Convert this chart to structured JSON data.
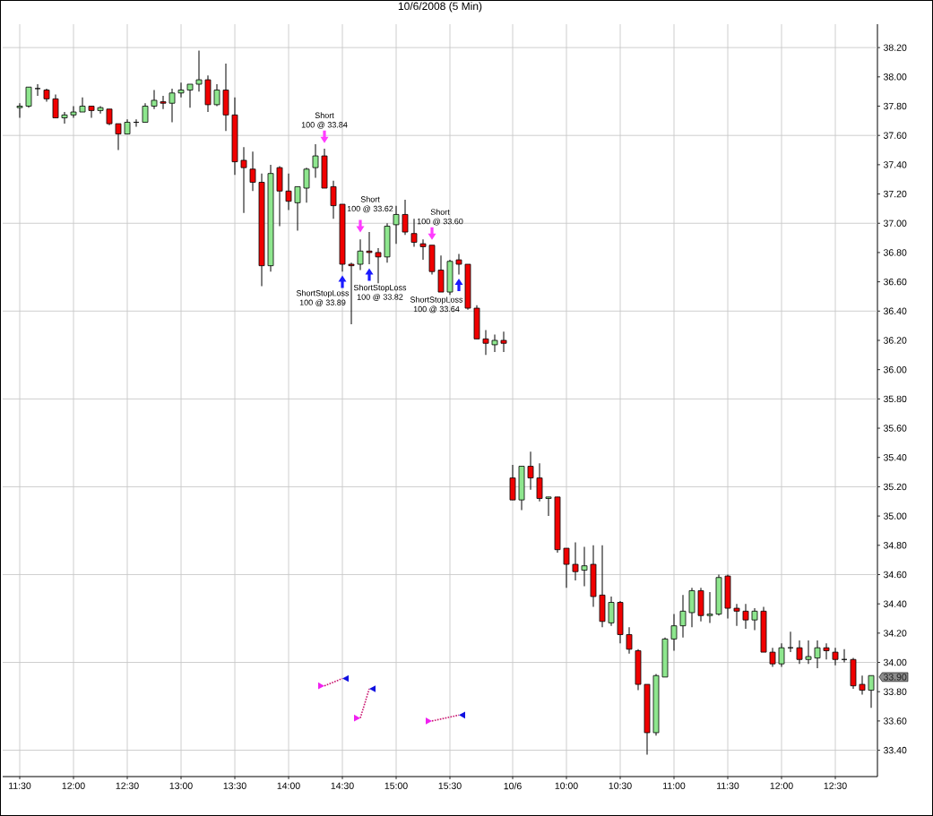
{
  "chart_data": {
    "type": "candlestick",
    "title": "10/6/2008 (5 Min)",
    "categories": [
      "11:30",
      null,
      null,
      null,
      null,
      null,
      "12:00",
      null,
      null,
      null,
      null,
      null,
      "12:30",
      null,
      null,
      null,
      null,
      null,
      "13:00",
      null,
      null,
      null,
      null,
      null,
      "13:30",
      null,
      null,
      null,
      null,
      null,
      "14:00",
      null,
      null,
      null,
      null,
      null,
      "14:30",
      null,
      null,
      null,
      null,
      null,
      "15:00",
      null,
      null,
      null,
      null,
      null,
      "15:30",
      null,
      null,
      null,
      null,
      null,
      null,
      "10/6",
      null,
      null,
      null,
      null,
      null,
      "10:00",
      null,
      null,
      null,
      null,
      null,
      "10:30",
      null,
      null,
      null,
      null,
      null,
      "11:00",
      null,
      null,
      null,
      null,
      null,
      "11:30",
      null,
      null,
      null,
      null,
      null,
      "12:00",
      null,
      null,
      null,
      null,
      null,
      "12:30",
      null,
      null,
      null,
      null
    ],
    "ohlc": [
      [
        37.79,
        37.82,
        37.72,
        37.8
      ],
      [
        37.8,
        37.93,
        37.79,
        37.93
      ],
      [
        37.92,
        37.95,
        37.87,
        37.92
      ],
      [
        37.91,
        37.92,
        37.83,
        37.85
      ],
      [
        37.85,
        37.88,
        37.72,
        37.72
      ],
      [
        37.72,
        37.76,
        37.68,
        37.74
      ],
      [
        37.74,
        37.8,
        37.72,
        37.76
      ],
      [
        37.76,
        37.86,
        37.76,
        37.8
      ],
      [
        37.8,
        37.8,
        37.72,
        37.77
      ],
      [
        37.77,
        37.8,
        37.75,
        37.79
      ],
      [
        37.78,
        37.78,
        37.67,
        37.68
      ],
      [
        37.68,
        37.68,
        37.5,
        37.61
      ],
      [
        37.61,
        37.71,
        37.61,
        37.69
      ],
      [
        37.69,
        37.71,
        37.66,
        37.69
      ],
      [
        37.69,
        37.82,
        37.69,
        37.8
      ],
      [
        37.8,
        37.91,
        37.78,
        37.84
      ],
      [
        37.83,
        37.87,
        37.78,
        37.82
      ],
      [
        37.82,
        37.92,
        37.69,
        37.89
      ],
      [
        37.89,
        37.96,
        37.86,
        37.91
      ],
      [
        37.91,
        37.95,
        37.79,
        37.95
      ],
      [
        37.95,
        38.18,
        37.9,
        37.98
      ],
      [
        37.98,
        38.01,
        37.76,
        37.81
      ],
      [
        37.81,
        37.95,
        37.8,
        37.91
      ],
      [
        37.91,
        38.09,
        37.63,
        37.74
      ],
      [
        37.74,
        37.86,
        37.33,
        37.42
      ],
      [
        37.43,
        37.52,
        37.07,
        37.38
      ],
      [
        37.37,
        37.49,
        37.22,
        37.28
      ],
      [
        37.28,
        37.34,
        36.57,
        36.71
      ],
      [
        36.71,
        37.4,
        36.67,
        37.34
      ],
      [
        37.38,
        37.39,
        36.98,
        37.22
      ],
      [
        37.22,
        37.34,
        37.09,
        37.15
      ],
      [
        37.14,
        37.25,
        36.95,
        37.25
      ],
      [
        37.24,
        37.38,
        37.14,
        37.37
      ],
      [
        37.38,
        37.54,
        37.31,
        37.46
      ],
      [
        37.46,
        37.51,
        37.24,
        37.24
      ],
      [
        37.25,
        37.29,
        37.03,
        37.12
      ],
      [
        37.13,
        37.13,
        36.67,
        36.72
      ],
      [
        36.72,
        36.73,
        36.31,
        36.71
      ],
      [
        36.72,
        36.89,
        36.68,
        36.81
      ],
      [
        36.81,
        36.94,
        36.72,
        36.8
      ],
      [
        36.8,
        36.83,
        36.59,
        36.77
      ],
      [
        36.77,
        37.0,
        36.73,
        36.98
      ],
      [
        36.99,
        37.12,
        36.86,
        37.06
      ],
      [
        37.06,
        37.16,
        36.92,
        36.94
      ],
      [
        36.93,
        37.03,
        36.84,
        36.87
      ],
      [
        36.86,
        36.89,
        36.75,
        36.84
      ],
      [
        36.85,
        36.85,
        36.65,
        36.67
      ],
      [
        36.68,
        36.78,
        36.53,
        36.53
      ],
      [
        36.53,
        36.75,
        36.51,
        36.74
      ],
      [
        36.75,
        36.79,
        36.65,
        36.72
      ],
      [
        36.72,
        36.72,
        36.41,
        36.42
      ],
      [
        36.42,
        36.44,
        36.21,
        36.21
      ],
      [
        36.21,
        36.27,
        36.1,
        36.18
      ],
      [
        36.17,
        36.24,
        36.12,
        36.2
      ],
      [
        36.2,
        36.26,
        36.12,
        36.18
      ],
      [
        35.26,
        35.35,
        35.11,
        35.11
      ],
      [
        35.11,
        35.34,
        35.04,
        35.34
      ],
      [
        35.34,
        35.44,
        35.18,
        35.26
      ],
      [
        35.26,
        35.36,
        35.1,
        35.12
      ],
      [
        35.12,
        35.13,
        35.0,
        35.13
      ],
      [
        35.13,
        35.13,
        34.75,
        34.77
      ],
      [
        34.78,
        34.78,
        34.51,
        34.67
      ],
      [
        34.67,
        34.82,
        34.56,
        34.62
      ],
      [
        34.63,
        34.79,
        34.52,
        34.66
      ],
      [
        34.67,
        34.8,
        34.38,
        34.45
      ],
      [
        34.46,
        34.8,
        34.24,
        34.28
      ],
      [
        34.27,
        34.45,
        34.25,
        34.41
      ],
      [
        34.41,
        34.42,
        34.13,
        34.19
      ],
      [
        34.19,
        34.24,
        34.06,
        34.09
      ],
      [
        34.08,
        34.09,
        33.81,
        33.85
      ],
      [
        33.85,
        33.85,
        33.37,
        33.52
      ],
      [
        33.52,
        33.92,
        33.5,
        33.91
      ],
      [
        33.9,
        34.17,
        33.9,
        34.16
      ],
      [
        34.16,
        34.33,
        34.08,
        34.25
      ],
      [
        34.25,
        34.46,
        34.17,
        34.35
      ],
      [
        34.34,
        34.51,
        34.24,
        34.49
      ],
      [
        34.49,
        34.51,
        34.28,
        34.32
      ],
      [
        34.32,
        34.48,
        34.27,
        34.33
      ],
      [
        34.33,
        34.6,
        34.32,
        34.58
      ],
      [
        34.59,
        34.6,
        34.3,
        34.37
      ],
      [
        34.37,
        34.4,
        34.25,
        34.35
      ],
      [
        34.35,
        34.4,
        34.23,
        34.29
      ],
      [
        34.29,
        34.37,
        34.22,
        34.35
      ],
      [
        34.35,
        34.38,
        34.07,
        34.07
      ],
      [
        34.07,
        34.1,
        33.97,
        33.99
      ],
      [
        33.99,
        34.13,
        33.97,
        34.1
      ],
      [
        34.1,
        34.21,
        34.07,
        34.1
      ],
      [
        34.1,
        34.15,
        33.99,
        34.02
      ],
      [
        34.02,
        34.15,
        33.99,
        34.04
      ],
      [
        34.03,
        34.15,
        33.96,
        34.1
      ],
      [
        34.1,
        34.13,
        34.02,
        34.08
      ],
      [
        34.07,
        34.1,
        33.98,
        34.02
      ],
      [
        34.02,
        34.09,
        34.0,
        34.02
      ],
      [
        34.02,
        34.03,
        33.82,
        33.84
      ],
      [
        33.85,
        33.91,
        33.78,
        33.81
      ],
      [
        33.81,
        33.91,
        33.69,
        33.91
      ]
    ],
    "colors": [
      "#8ee68e",
      "#8ee68e",
      "#000000",
      "#f00000",
      "#f00000",
      "#8ee68e",
      "#8ee68e",
      "#8ee68e",
      "#f00000",
      "#8ee68e",
      "#f00000",
      "#f00000",
      "#8ee68e",
      "#000000",
      "#8ee68e",
      "#8ee68e",
      "#f00000",
      "#8ee68e",
      "#8ee68e",
      "#8ee68e",
      "#8ee68e",
      "#f00000",
      "#8ee68e",
      "#f00000",
      "#f00000",
      "#f00000",
      "#f00000",
      "#f00000",
      "#8ee68e",
      "#f00000",
      "#f00000",
      "#8ee68e",
      "#8ee68e",
      "#8ee68e",
      "#f00000",
      "#f00000",
      "#f00000",
      "#f00000",
      "#8ee68e",
      "#f00000",
      "#f00000",
      "#8ee68e",
      "#8ee68e",
      "#f00000",
      "#f00000",
      "#f00000",
      "#f00000",
      "#f00000",
      "#8ee68e",
      "#f00000",
      "#f00000",
      "#f00000",
      "#f00000",
      "#8ee68e",
      "#f00000",
      "#f00000",
      "#8ee68e",
      "#f00000",
      "#f00000",
      "#8ee68e",
      "#f00000",
      "#f00000",
      "#f00000",
      "#8ee68e",
      "#f00000",
      "#f00000",
      "#8ee68e",
      "#f00000",
      "#f00000",
      "#f00000",
      "#f00000",
      "#8ee68e",
      "#8ee68e",
      "#8ee68e",
      "#8ee68e",
      "#8ee68e",
      "#f00000",
      "#8ee68e",
      "#8ee68e",
      "#f00000",
      "#f00000",
      "#f00000",
      "#8ee68e",
      "#f00000",
      "#f00000",
      "#8ee68e",
      "#000000",
      "#f00000",
      "#8ee68e",
      "#8ee68e",
      "#f00000",
      "#f00000",
      "#000000",
      "#f00000",
      "#f00000",
      "#8ee68e"
    ],
    "ylim": [
      33.22,
      38.36
    ],
    "yticks": [
      {
        "value": 33.4,
        "label": "33.40"
      },
      {
        "value": 33.6,
        "label": "33.60"
      },
      {
        "value": 33.8,
        "label": "33.80"
      },
      {
        "value": 34.0,
        "label": "34.00"
      },
      {
        "value": 34.2,
        "label": "34.20"
      },
      {
        "value": 34.4,
        "label": "34.40"
      },
      {
        "value": 34.6,
        "label": "34.60"
      },
      {
        "value": 34.8,
        "label": "34.80"
      },
      {
        "value": 35.0,
        "label": "35.00"
      },
      {
        "value": 35.2,
        "label": "35.20"
      },
      {
        "value": 35.4,
        "label": "35.40"
      },
      {
        "value": 35.6,
        "label": "35.60"
      },
      {
        "value": 35.8,
        "label": "35.80"
      },
      {
        "value": 36.0,
        "label": "36.00"
      },
      {
        "value": 36.2,
        "label": "36.20"
      },
      {
        "value": 36.4,
        "label": "36.40"
      },
      {
        "value": 36.6,
        "label": "36.60"
      },
      {
        "value": 36.8,
        "label": "36.80"
      },
      {
        "value": 37.0,
        "label": "37.00"
      },
      {
        "value": 37.2,
        "label": "37.20"
      },
      {
        "value": 37.4,
        "label": "37.40"
      },
      {
        "value": 37.6,
        "label": "37.60"
      },
      {
        "value": 37.8,
        "label": "37.80"
      },
      {
        "value": 38.0,
        "label": "38.00"
      },
      {
        "value": 38.2,
        "label": "38.20"
      }
    ],
    "grid": true,
    "series": [
      {
        "type": "line",
        "color": "#c8146e",
        "line_style": "dotted",
        "values": [
          null,
          null,
          null,
          null,
          null,
          null,
          null,
          null,
          null,
          null,
          null,
          null,
          null,
          null,
          null,
          null,
          null,
          null,
          null,
          null,
          null,
          null,
          null,
          null,
          null,
          null,
          null,
          null,
          null,
          null,
          null,
          null,
          null,
          null,
          33.84,
          null,
          33.89,
          null,
          null,
          null,
          null,
          null,
          null,
          null,
          null,
          null,
          null,
          null,
          null,
          null,
          null,
          null,
          null,
          null,
          null,
          null,
          null,
          null,
          null,
          null,
          null,
          null,
          null,
          null,
          null,
          null,
          null,
          null,
          null,
          null,
          null,
          null,
          null,
          null,
          null,
          null,
          null,
          null,
          null,
          null,
          null,
          null,
          null,
          null,
          null,
          null,
          null,
          null,
          null,
          null,
          null,
          null,
          null,
          null,
          null,
          null
        ]
      },
      {
        "type": "line",
        "color": "#c8146e",
        "line_style": "dotted",
        "values": [
          null,
          null,
          null,
          null,
          null,
          null,
          null,
          null,
          null,
          null,
          null,
          null,
          null,
          null,
          null,
          null,
          null,
          null,
          null,
          null,
          null,
          null,
          null,
          null,
          null,
          null,
          null,
          null,
          null,
          null,
          null,
          null,
          null,
          null,
          null,
          null,
          null,
          null,
          33.62,
          33.82,
          null,
          null,
          null,
          null,
          null,
          null,
          null,
          null,
          null,
          null,
          null,
          null,
          null,
          null,
          null,
          null,
          null,
          null,
          null,
          null,
          null,
          null,
          null,
          null,
          null,
          null,
          null,
          null,
          null,
          null,
          null,
          null,
          null,
          null,
          null,
          null,
          null,
          null,
          null,
          null,
          null,
          null,
          null,
          null,
          null,
          null,
          null,
          null,
          null,
          null,
          null,
          null,
          null,
          null,
          null,
          null
        ]
      },
      {
        "type": "line",
        "color": "#c8146e",
        "line_style": "dotted",
        "values": [
          null,
          null,
          null,
          null,
          null,
          null,
          null,
          null,
          null,
          null,
          null,
          null,
          null,
          null,
          null,
          null,
          null,
          null,
          null,
          null,
          null,
          null,
          null,
          null,
          null,
          null,
          null,
          null,
          null,
          null,
          null,
          null,
          null,
          null,
          null,
          null,
          null,
          null,
          null,
          null,
          null,
          null,
          null,
          null,
          null,
          null,
          33.6,
          null,
          null,
          33.64,
          null,
          null,
          null,
          null,
          null,
          null,
          null,
          null,
          null,
          null,
          null,
          null,
          null,
          null,
          null,
          null,
          null,
          null,
          null,
          null,
          null,
          null,
          null,
          null,
          null,
          null,
          null,
          null,
          null,
          null,
          null,
          null,
          null,
          null,
          null,
          null,
          null,
          null,
          null,
          null,
          null,
          null,
          null,
          null,
          null,
          null
        ]
      },
      {
        "type": "scatter",
        "color": "#f020f0",
        "marker": "triangle",
        "values": [
          null,
          null,
          null,
          null,
          null,
          null,
          null,
          null,
          null,
          null,
          null,
          null,
          null,
          null,
          null,
          null,
          null,
          null,
          null,
          null,
          null,
          null,
          null,
          null,
          null,
          null,
          null,
          null,
          null,
          null,
          null,
          null,
          null,
          null,
          33.84,
          null,
          null,
          null,
          33.62,
          null,
          null,
          null,
          null,
          null,
          null,
          null,
          33.6,
          null,
          null,
          null,
          null,
          null,
          null,
          null,
          null,
          null,
          null,
          null,
          null,
          null,
          null,
          null,
          null,
          null,
          null,
          null,
          null,
          null,
          null,
          null,
          null,
          null,
          null,
          null,
          null,
          null,
          null,
          null,
          null,
          null,
          null,
          null,
          null,
          null,
          null,
          null,
          null,
          null,
          null,
          null,
          null,
          null,
          null,
          null,
          null,
          null
        ]
      },
      {
        "type": "scatter",
        "color": "#1010e0",
        "marker": "triangle",
        "values": [
          null,
          null,
          null,
          null,
          null,
          null,
          null,
          null,
          null,
          null,
          null,
          null,
          null,
          null,
          null,
          null,
          null,
          null,
          null,
          null,
          null,
          null,
          null,
          null,
          null,
          null,
          null,
          null,
          null,
          null,
          null,
          null,
          null,
          null,
          null,
          null,
          33.89,
          null,
          null,
          33.82,
          null,
          null,
          null,
          null,
          null,
          null,
          null,
          null,
          null,
          33.64,
          null,
          null,
          null,
          null,
          null,
          null,
          null,
          null,
          null,
          null,
          null,
          null,
          null,
          null,
          null,
          null,
          null,
          null,
          null,
          null,
          null,
          null,
          null,
          null,
          null,
          null,
          null,
          null,
          null,
          null,
          null,
          null,
          null,
          null,
          null,
          null,
          null,
          null,
          null,
          null,
          null,
          null,
          null,
          null,
          null,
          null
        ]
      },
      {
        "type": "scatter",
        "name": "Short",
        "color": "#ff3cff",
        "marker": "triangle",
        "values": [
          null,
          null,
          null,
          null,
          null,
          null,
          null,
          null,
          null,
          null,
          null,
          null,
          null,
          null,
          null,
          null,
          null,
          null,
          null,
          null,
          null,
          null,
          null,
          null,
          null,
          null,
          null,
          null,
          null,
          null,
          null,
          null,
          null,
          null,
          37.59,
          null,
          null,
          null,
          36.98,
          null,
          null,
          null,
          null,
          null,
          null,
          null,
          36.93,
          null,
          null,
          null,
          null,
          null,
          null,
          null,
          null,
          null,
          null,
          null,
          null,
          null,
          null,
          null,
          null,
          null,
          null,
          null,
          null,
          null,
          null,
          null,
          null,
          null,
          null,
          null,
          null,
          null,
          null,
          null,
          null,
          null,
          null,
          null,
          null,
          null,
          null,
          null,
          null,
          null,
          null,
          null,
          null,
          null,
          null,
          null,
          null,
          null
        ],
        "value_labels": [
          null,
          null,
          null,
          null,
          null,
          null,
          null,
          null,
          null,
          null,
          null,
          null,
          null,
          null,
          null,
          null,
          null,
          null,
          null,
          null,
          null,
          null,
          null,
          null,
          null,
          null,
          null,
          null,
          null,
          null,
          null,
          null,
          null,
          null,
          "100 @ 33.84",
          null,
          null,
          null,
          "100 @ 33.62",
          null,
          null,
          null,
          null,
          null,
          null,
          null,
          "100 @ 33.60",
          null,
          null,
          null,
          null,
          null,
          null,
          null,
          null,
          null,
          null,
          null,
          null,
          null,
          null,
          null,
          null,
          null,
          null,
          null,
          null,
          null,
          null,
          null,
          null,
          null,
          null,
          null,
          null,
          null,
          null,
          null,
          null,
          null,
          null,
          null,
          null,
          null,
          null,
          null,
          null,
          null,
          null,
          null,
          null,
          null,
          null,
          null,
          null,
          null
        ]
      },
      {
        "type": "scatter",
        "name": "ShortStopLoss",
        "color": "#1a1aff",
        "marker": "triangle",
        "values": [
          null,
          null,
          null,
          null,
          null,
          null,
          null,
          null,
          null,
          null,
          null,
          null,
          null,
          null,
          null,
          null,
          null,
          null,
          null,
          null,
          null,
          null,
          null,
          null,
          null,
          null,
          null,
          null,
          null,
          null,
          null,
          null,
          null,
          null,
          null,
          null,
          36.6,
          null,
          null,
          36.65,
          null,
          null,
          null,
          null,
          null,
          null,
          null,
          null,
          null,
          36.58,
          null,
          null,
          null,
          null,
          null,
          null,
          null,
          null,
          null,
          null,
          null,
          null,
          null,
          null,
          null,
          null,
          null,
          null,
          null,
          null,
          null,
          null,
          null,
          null,
          null,
          null,
          null,
          null,
          null,
          null,
          null,
          null,
          null,
          null,
          null,
          null,
          null,
          null,
          null,
          null,
          null,
          null,
          null,
          null,
          null,
          null
        ],
        "value_labels": [
          null,
          null,
          null,
          null,
          null,
          null,
          null,
          null,
          null,
          null,
          null,
          null,
          null,
          null,
          null,
          null,
          null,
          null,
          null,
          null,
          null,
          null,
          null,
          null,
          null,
          null,
          null,
          null,
          null,
          null,
          null,
          null,
          null,
          null,
          null,
          null,
          "100 @ 33.89",
          null,
          null,
          "100 @ 33.82",
          null,
          null,
          null,
          null,
          null,
          null,
          null,
          null,
          null,
          "100 @ 33.64",
          null,
          null,
          null,
          null,
          null,
          null,
          null,
          null,
          null,
          null,
          null,
          null,
          null,
          null,
          null,
          null,
          null,
          null,
          null,
          null,
          null,
          null,
          null,
          null,
          null,
          null,
          null,
          null,
          null,
          null,
          null,
          null,
          null,
          null,
          null,
          null,
          null,
          null,
          null,
          null,
          null,
          null,
          null,
          null,
          null,
          null
        ]
      }
    ],
    "annotations": [
      {
        "text": "33.90",
        "y": 33.9
      }
    ]
  }
}
